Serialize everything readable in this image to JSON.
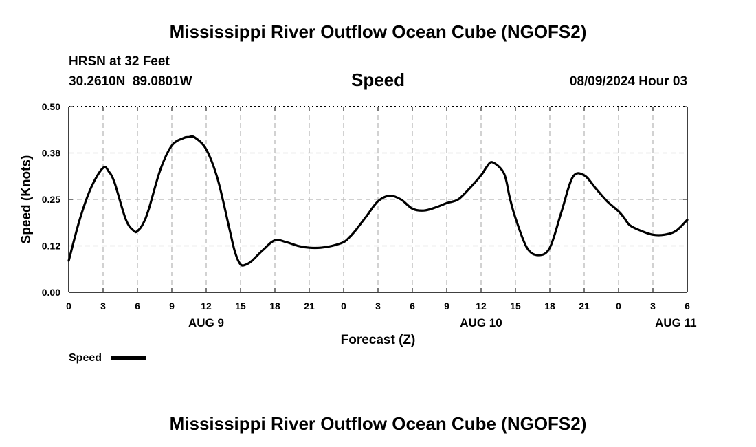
{
  "page": {
    "title": "Mississippi River Outflow Ocean Cube (NGOFS2)",
    "station": "HRSN at 32 Feet",
    "coords": "30.2610N  89.0801W",
    "variable": "Speed",
    "datetime": "08/09/2024 Hour 03",
    "footer_title": "Mississippi River Outflow Ocean Cube (NGOFS2)"
  },
  "chart_data": {
    "type": "line",
    "title": "Speed",
    "xlabel": "Forecast (Z)",
    "ylabel": "Speed (Knots)",
    "x_unit": "hours since 08/09/2024 00Z",
    "xlim": [
      0,
      54
    ],
    "ylim": [
      0.0,
      0.5
    ],
    "y_ticks": [
      "0.00",
      "0.12",
      "0.25",
      "0.38",
      "0.50"
    ],
    "y_tick_values": [
      0.0,
      0.125,
      0.25,
      0.375,
      0.5
    ],
    "x_ticks": [
      "0",
      "3",
      "6",
      "9",
      "12",
      "15",
      "18",
      "21",
      "0",
      "3",
      "6",
      "9",
      "12",
      "15",
      "18",
      "21",
      "0",
      "3",
      "6"
    ],
    "day_labels": [
      {
        "label": "AUG 9",
        "hour": 12
      },
      {
        "label": "AUG 10",
        "hour": 36
      },
      {
        "label": "AUG 11",
        "hour": 53
      }
    ],
    "grid": true,
    "legend": "bottom-left",
    "series": [
      {
        "name": "Speed",
        "color": "#000000",
        "x": [
          0,
          1,
          2,
          3,
          3.5,
          4,
          5,
          5.7,
          6,
          6.5,
          7,
          8,
          9,
          10,
          10.5,
          11,
          12,
          13,
          14,
          14.5,
          15,
          15.5,
          16,
          17,
          18,
          19,
          20,
          21,
          22,
          23,
          24,
          24.5,
          25,
          26,
          27,
          28,
          29,
          30,
          31,
          32,
          33,
          34,
          35,
          36,
          36.5,
          37,
          38,
          38.5,
          39,
          40,
          41,
          42,
          43,
          44,
          45,
          46,
          47,
          48,
          48.5,
          49,
          50,
          51,
          52,
          53,
          54
        ],
        "y": [
          0.085,
          0.2,
          0.285,
          0.335,
          0.325,
          0.295,
          0.195,
          0.165,
          0.165,
          0.185,
          0.225,
          0.33,
          0.395,
          0.415,
          0.418,
          0.417,
          0.385,
          0.305,
          0.175,
          0.11,
          0.075,
          0.075,
          0.085,
          0.115,
          0.14,
          0.135,
          0.125,
          0.12,
          0.12,
          0.125,
          0.135,
          0.148,
          0.165,
          0.205,
          0.245,
          0.26,
          0.25,
          0.225,
          0.22,
          0.228,
          0.24,
          0.25,
          0.28,
          0.315,
          0.338,
          0.35,
          0.32,
          0.255,
          0.2,
          0.12,
          0.1,
          0.12,
          0.215,
          0.31,
          0.315,
          0.28,
          0.245,
          0.218,
          0.2,
          0.18,
          0.165,
          0.155,
          0.155,
          0.165,
          0.195
        ]
      }
    ]
  }
}
